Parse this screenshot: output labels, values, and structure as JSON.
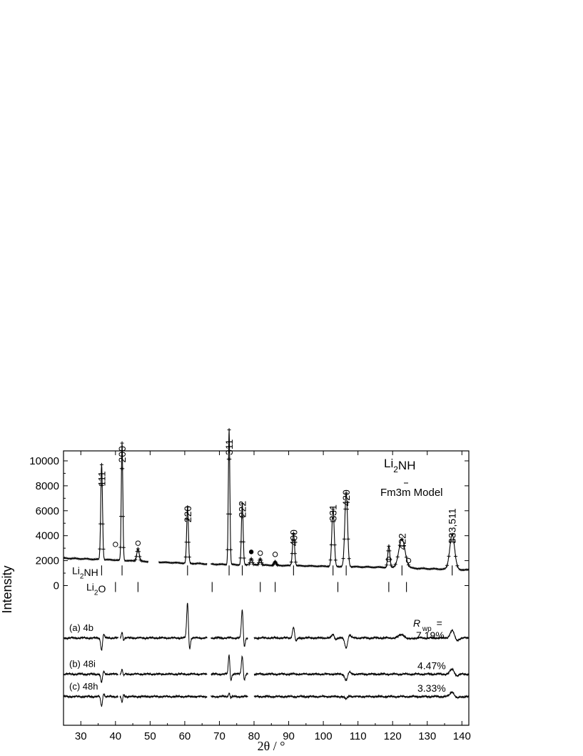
{
  "chart_data": {
    "type": "line",
    "title": "",
    "xlabel": "2θ  / °",
    "ylabel": "Intensity",
    "xlim": [
      25,
      142
    ],
    "ylim": [
      -11200,
      10800
    ],
    "x_ticks": [
      30,
      40,
      50,
      60,
      70,
      80,
      90,
      100,
      110,
      120,
      130,
      140
    ],
    "y_ticks": [
      0,
      2000,
      4000,
      6000,
      8000,
      10000
    ],
    "grid": false,
    "phase_title": "Li2NH",
    "space_group": "Fm3m Model",
    "reflection_rows": [
      {
        "label": "Li2NH",
        "y": 1100,
        "positions": [
          36.0,
          41.9,
          60.8,
          72.8,
          76.6,
          91.4,
          102.8,
          106.6,
          122.7,
          137.2
        ]
      },
      {
        "label": "Li2O",
        "y": 0,
        "positions": [
          40.0,
          46.5,
          67.9,
          81.8,
          86.1,
          104.2,
          118.9,
          124.0
        ]
      }
    ],
    "peak_labels": [
      {
        "text": "111",
        "x": 36.0,
        "y": 7500
      },
      {
        "text": "200",
        "x": 41.9,
        "y": 9400
      },
      {
        "text": "220",
        "x": 60.8,
        "y": 4600
      },
      {
        "text": "311",
        "x": 72.8,
        "y": 10000
      },
      {
        "text": "222",
        "x": 76.6,
        "y": 5000
      },
      {
        "text": "400",
        "x": 91.4,
        "y": 2700
      },
      {
        "text": "331",
        "x": 102.8,
        "y": 4700
      },
      {
        "text": "420",
        "x": 106.6,
        "y": 5900
      },
      {
        "text": "422",
        "x": 122.7,
        "y": 2400
      },
      {
        "text": "333,511",
        "x": 137.2,
        "y": 2900
      }
    ],
    "impurity_open": [
      [
        40.0,
        3300
      ],
      [
        46.5,
        3400
      ],
      [
        81.8,
        2600
      ],
      [
        86.1,
        2500
      ],
      [
        118.9,
        2100
      ],
      [
        124.6,
        2000
      ]
    ],
    "impurity_filled": [
      [
        79.2,
        2700
      ]
    ],
    "observed_baseline": [
      [
        25,
        2200
      ],
      [
        30,
        2150
      ],
      [
        35,
        2100
      ],
      [
        40,
        2050
      ],
      [
        50,
        1900
      ],
      [
        55,
        1850
      ],
      [
        60,
        1800
      ],
      [
        65,
        1750
      ],
      [
        70,
        1700
      ],
      [
        80,
        1650
      ],
      [
        90,
        1600
      ],
      [
        100,
        1550
      ],
      [
        110,
        1500
      ],
      [
        120,
        1450
      ],
      [
        130,
        1350
      ],
      [
        137,
        1300
      ],
      [
        142,
        1250
      ]
    ],
    "observed_peaks": [
      {
        "x": 36.0,
        "height": 7600,
        "width": 0.25
      },
      {
        "x": 41.9,
        "height": 9400,
        "width": 0.22
      },
      {
        "x": 46.5,
        "height": 1000,
        "width": 0.35
      },
      {
        "x": 60.8,
        "height": 4500,
        "width": 0.25
      },
      {
        "x": 72.8,
        "height": 10800,
        "width": 0.22
      },
      {
        "x": 76.6,
        "height": 4900,
        "width": 0.25
      },
      {
        "x": 79.2,
        "height": 500,
        "width": 0.3
      },
      {
        "x": 81.8,
        "height": 500,
        "width": 0.3
      },
      {
        "x": 86.1,
        "height": 300,
        "width": 0.3
      },
      {
        "x": 91.4,
        "height": 2600,
        "width": 0.3
      },
      {
        "x": 102.8,
        "height": 4600,
        "width": 0.35
      },
      {
        "x": 106.6,
        "height": 5900,
        "width": 0.4
      },
      {
        "x": 118.9,
        "height": 1700,
        "width": 0.3
      },
      {
        "x": 122.7,
        "height": 2300,
        "width": 0.9
      },
      {
        "x": 137.2,
        "height": 2800,
        "width": 0.7
      }
    ],
    "gaps": [
      [
        49.5,
        52.5
      ],
      [
        66.5,
        67.5
      ],
      [
        78.2,
        80.0
      ]
    ],
    "difference_gaps": [
      [
        40.8,
        41.3
      ],
      [
        66.5,
        67.5
      ],
      [
        78.2,
        80.0
      ]
    ],
    "difference_curves": [
      {
        "name": "(a) 4b",
        "baseline": -4200,
        "rwp_label": "R",
        "rwp_sub": "wp",
        "rwp_eq": "=",
        "rwp_value": "7.19%",
        "features": [
          {
            "x": 36.0,
            "amp": -1000,
            "width": 0.25
          },
          {
            "x": 41.9,
            "amp": 500,
            "width": 0.2
          },
          {
            "x": 60.8,
            "amp": 2900,
            "width": 0.25
          },
          {
            "x": 76.6,
            "amp": 2300,
            "width": 0.25
          },
          {
            "x": 91.4,
            "amp": 900,
            "width": 0.3
          },
          {
            "x": 102.8,
            "amp": 300,
            "width": 0.35
          },
          {
            "x": 106.6,
            "amp": -800,
            "width": 0.4
          },
          {
            "x": 122.7,
            "amp": 300,
            "width": 0.8
          },
          {
            "x": 137.2,
            "amp": 600,
            "width": 0.6
          }
        ]
      },
      {
        "name": "(b) 48i",
        "baseline": -7100,
        "rwp_value": "4.47%",
        "features": [
          {
            "x": 36.0,
            "amp": -700,
            "width": 0.25
          },
          {
            "x": 41.9,
            "amp": 400,
            "width": 0.2
          },
          {
            "x": 72.8,
            "amp": 1600,
            "width": 0.22
          },
          {
            "x": 76.6,
            "amp": 1500,
            "width": 0.25
          },
          {
            "x": 106.6,
            "amp": -500,
            "width": 0.4
          },
          {
            "x": 137.2,
            "amp": 400,
            "width": 0.6
          }
        ]
      },
      {
        "name": "(c) 48h",
        "baseline": -8900,
        "rwp_value": "3.33%",
        "features": [
          {
            "x": 36.0,
            "amp": -800,
            "width": 0.25
          },
          {
            "x": 41.9,
            "amp": -500,
            "width": 0.2
          },
          {
            "x": 72.8,
            "amp": 300,
            "width": 0.22
          },
          {
            "x": 106.6,
            "amp": -200,
            "width": 0.4
          },
          {
            "x": 137.2,
            "amp": 400,
            "width": 0.6
          }
        ]
      }
    ]
  }
}
